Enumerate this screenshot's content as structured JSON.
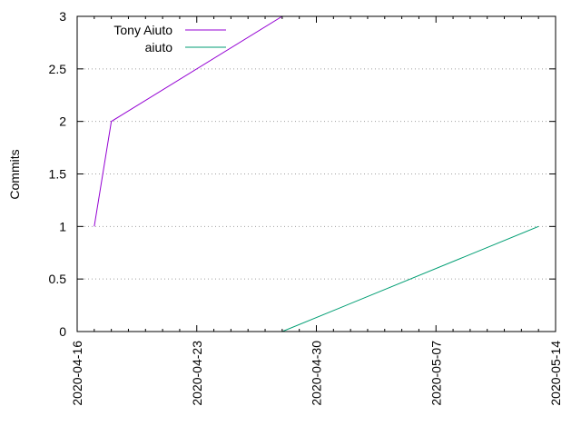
{
  "chart_data": {
    "type": "line",
    "title": "",
    "xlabel": "",
    "ylabel": "Commits",
    "x_type": "date",
    "xlim": [
      "2020-04-16",
      "2020-05-14"
    ],
    "ylim": [
      0,
      3
    ],
    "x_ticks": [
      "2020-04-16",
      "2020-04-23",
      "2020-04-30",
      "2020-05-07",
      "2020-05-14"
    ],
    "y_ticks": [
      "0",
      "0.5",
      "1",
      "1.5",
      "2",
      "2.5",
      "3"
    ],
    "grid": "horizontal dotted",
    "legend_position": "top-left",
    "series": [
      {
        "name": "Tony Aiuto",
        "color": "#9400d3",
        "points": [
          {
            "x": "2020-04-17",
            "y": 1
          },
          {
            "x": "2020-04-18",
            "y": 2
          },
          {
            "x": "2020-04-28",
            "y": 3
          }
        ]
      },
      {
        "name": "aiuto",
        "color": "#009e73",
        "points": [
          {
            "x": "2020-04-28",
            "y": 0
          },
          {
            "x": "2020-05-13",
            "y": 1
          }
        ]
      }
    ]
  }
}
